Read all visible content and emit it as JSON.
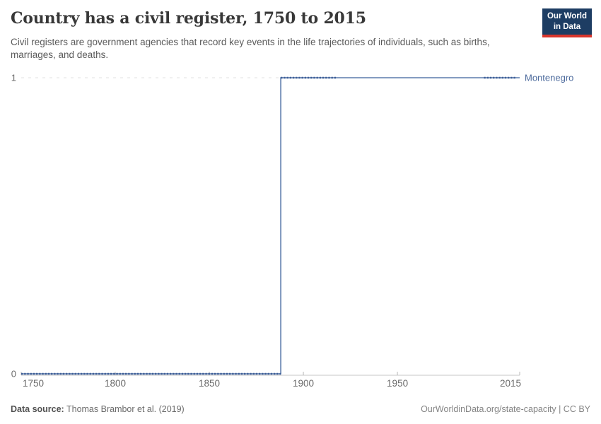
{
  "header": {
    "title": "Country has a civil register, 1750 to 2015",
    "subtitle": "Civil registers are government agencies that record key events in the life trajectories of individuals, such as births, marriages, and deaths.",
    "logo": {
      "line1": "Our World",
      "line2": "in Data",
      "bg": "#1d3d63",
      "accent": "#d8352c"
    }
  },
  "chart_data": {
    "type": "line",
    "step": true,
    "title": "Country has a civil register, 1750 to 2015",
    "xlabel": "",
    "ylabel": "",
    "xlim": [
      1750,
      2015
    ],
    "ylim": [
      0,
      1
    ],
    "grid": "dashed gridline at y=1 only",
    "legend_position": "label right of line end",
    "axis_color": "#c7c7c7",
    "tick_text_color": "#6b6b6b",
    "gridline_color": "#e0e0e0",
    "x_ticks": [
      {
        "year": 1750,
        "label": "1750"
      },
      {
        "year": 1800,
        "label": "1800"
      },
      {
        "year": 1850,
        "label": "1850"
      },
      {
        "year": 1900,
        "label": "1900"
      },
      {
        "year": 1950,
        "label": "1950"
      },
      {
        "year": 2015,
        "label": "2015"
      }
    ],
    "y_ticks": [
      {
        "value": 0,
        "label": "0"
      },
      {
        "value": 1,
        "label": "1"
      }
    ],
    "series": [
      {
        "name": "Montenegro",
        "label_color": "#4c6a9c",
        "line_color": "#5b7aab",
        "marker_color": "#3d5e97",
        "points": [
          [
            1750,
            0
          ],
          [
            1888,
            0
          ],
          [
            1888,
            1
          ],
          [
            2015,
            1
          ]
        ],
        "marker_segments": [
          {
            "y": 0,
            "from": 1750,
            "to": 1888
          },
          {
            "y": 1,
            "from": 1888,
            "to": 1918
          },
          {
            "y": 1,
            "from": 1996,
            "to": 2013
          }
        ]
      }
    ]
  },
  "footer": {
    "datasource_label": "Data source:",
    "datasource_value": "Thomas Brambor et al. (2019)",
    "attribution": "OurWorldinData.org/state-capacity | CC BY"
  }
}
